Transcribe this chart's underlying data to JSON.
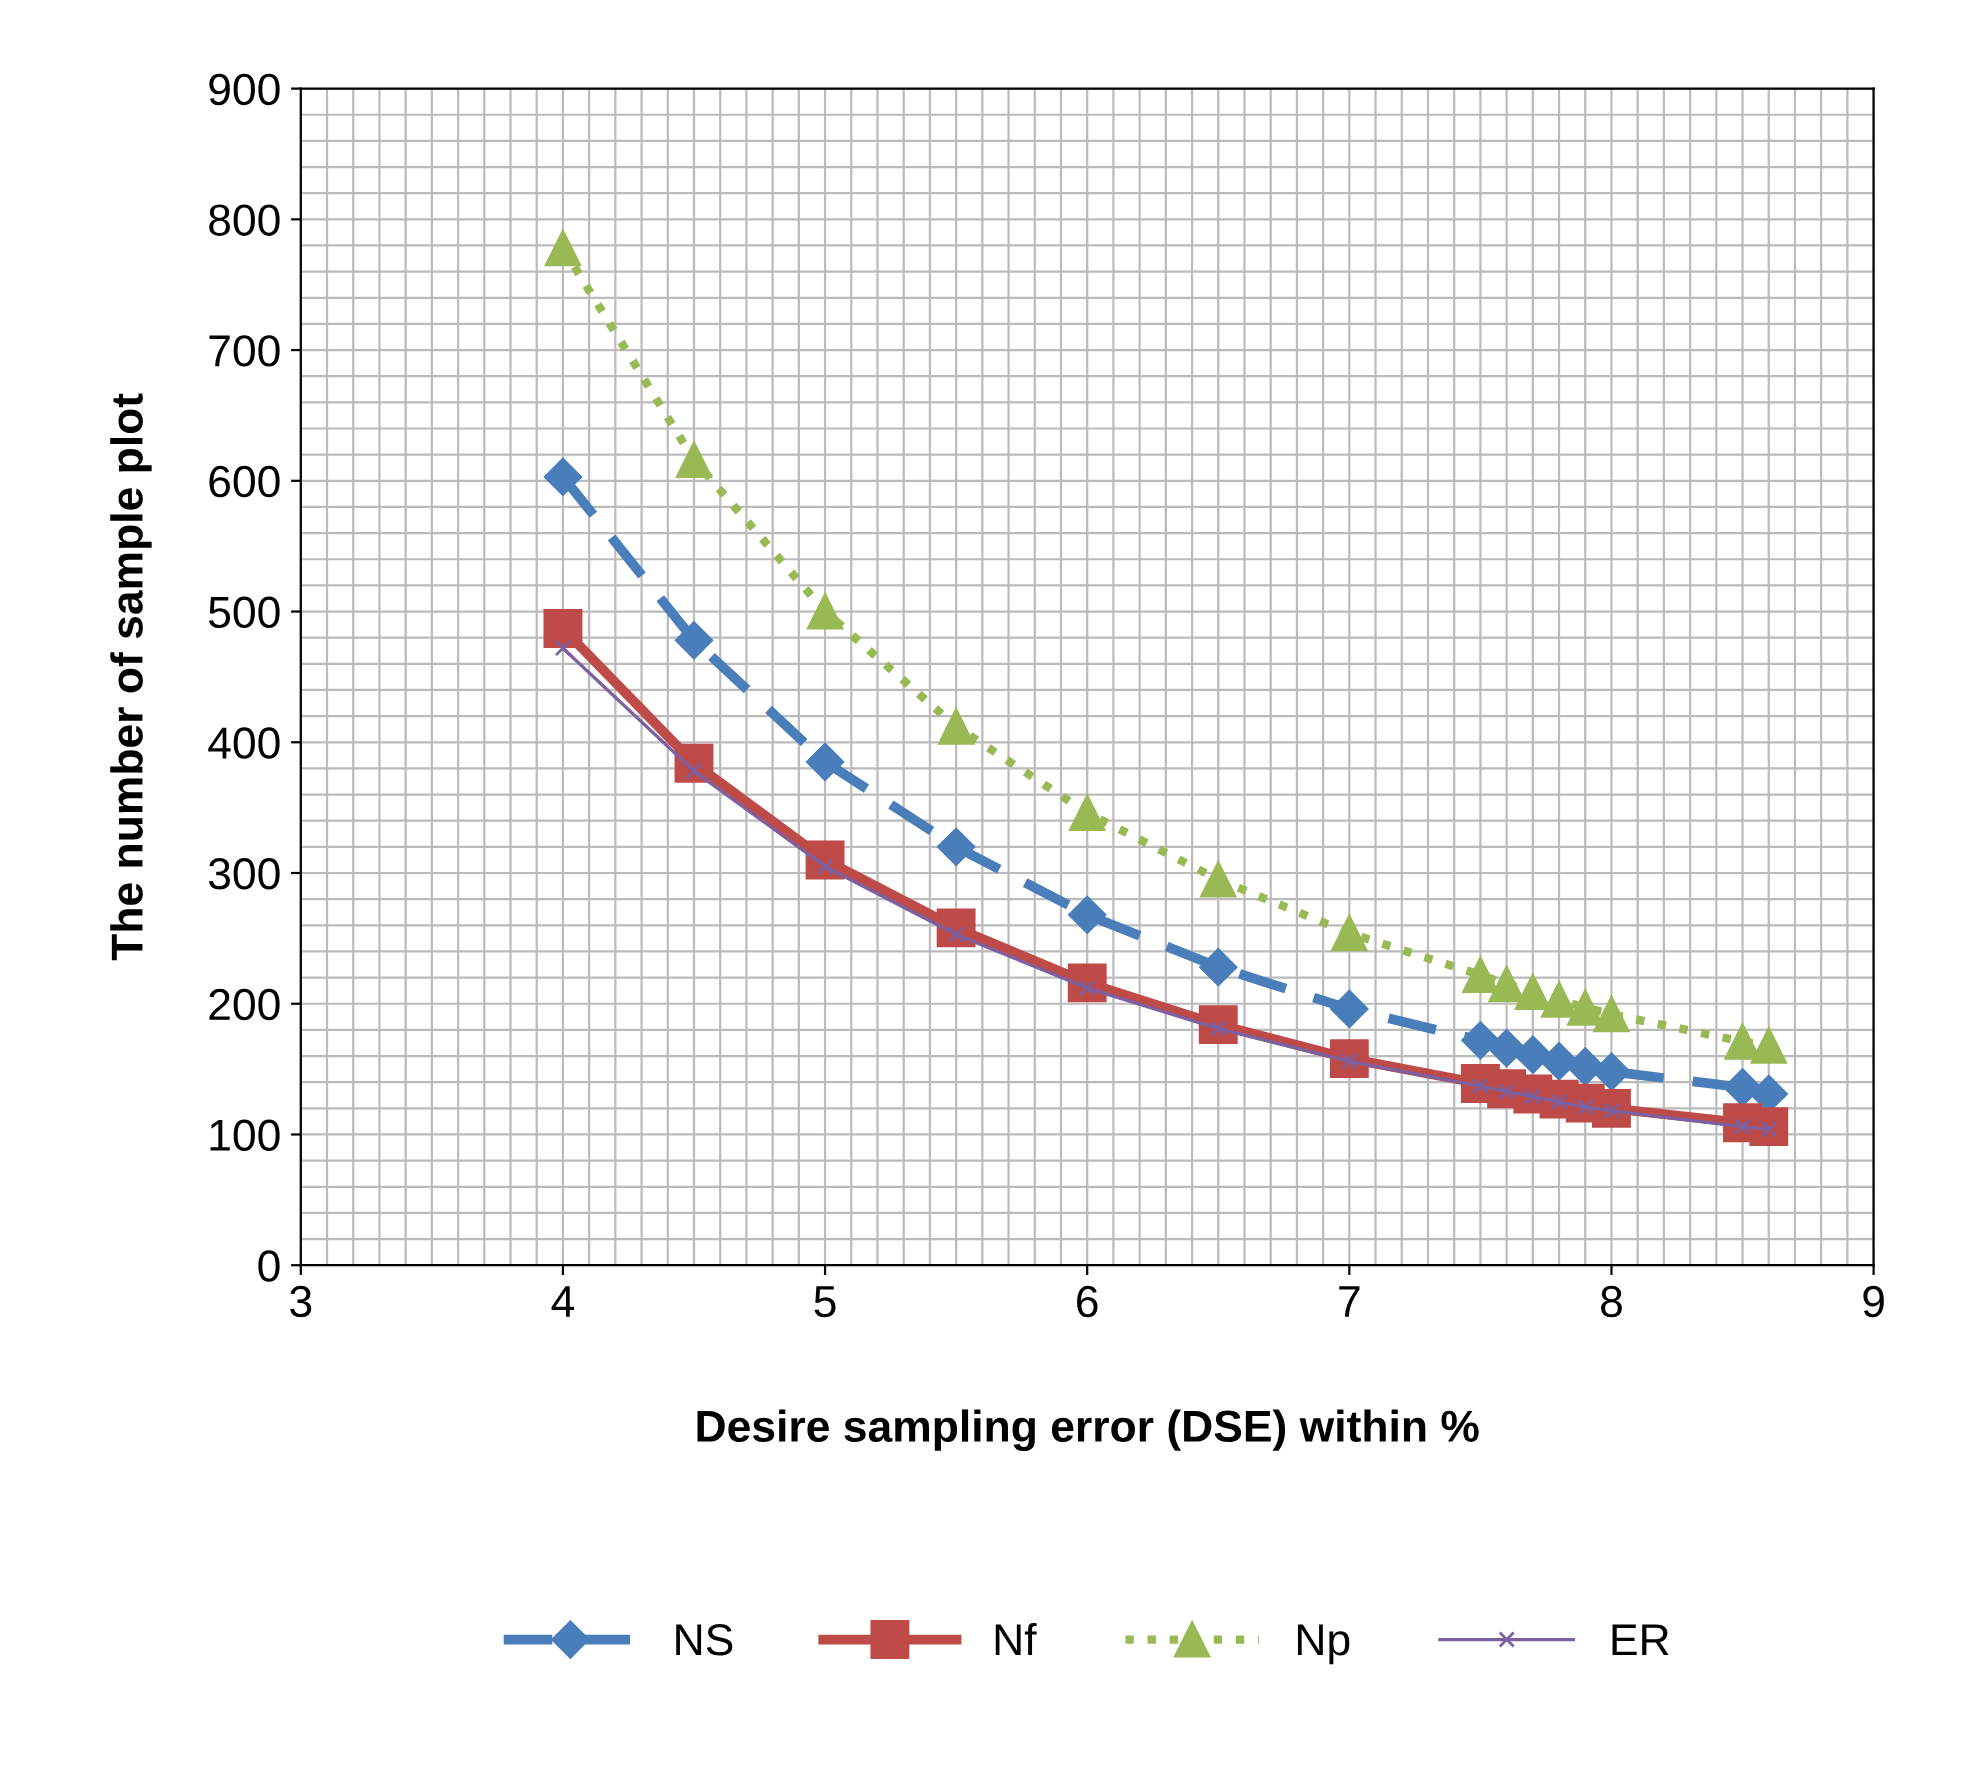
{
  "chart_data": {
    "type": "line",
    "xlabel": "Desire sampling error (DSE) within %",
    "ylabel": "The number of sample plot",
    "x": [
      4,
      4.5,
      5,
      5.5,
      6,
      6.5,
      7,
      7.5,
      7.6,
      7.7,
      7.8,
      7.9,
      8,
      8.5,
      8.6
    ],
    "series": [
      {
        "name": "NS",
        "color": "#4a7ebb",
        "marker": "diamond",
        "line_style": "dashed",
        "values": [
          603,
          478,
          385,
          320,
          268,
          228,
          196,
          172,
          166,
          161,
          156,
          152,
          148,
          136,
          131
        ]
      },
      {
        "name": "Nf",
        "color": "#be4b48",
        "marker": "square",
        "line_style": "solid",
        "values": [
          487,
          384,
          310,
          258,
          216,
          184,
          158,
          139,
          135,
          131,
          127,
          124,
          120,
          109,
          106
        ]
      },
      {
        "name": "Np",
        "color": "#98b954",
        "marker": "triangle",
        "line_style": "dotted",
        "values": [
          778,
          616,
          500,
          412,
          346,
          295,
          254,
          222,
          215,
          209,
          203,
          197,
          192,
          171,
          168
        ]
      },
      {
        "name": "ER",
        "color": "#7d60a0",
        "marker": "cross",
        "line_style": "solid",
        "values": [
          472,
          378,
          305,
          253,
          212,
          181,
          156,
          137,
          133,
          129,
          125,
          121,
          118,
          106,
          104
        ]
      }
    ],
    "xlim": [
      3,
      9
    ],
    "xticks": [
      3,
      4,
      5,
      6,
      7,
      8,
      9
    ],
    "ylim": [
      0,
      900
    ],
    "yticks": [
      0,
      100,
      200,
      300,
      400,
      500,
      600,
      700,
      800,
      900
    ],
    "grid": true,
    "legend": "bottom"
  }
}
